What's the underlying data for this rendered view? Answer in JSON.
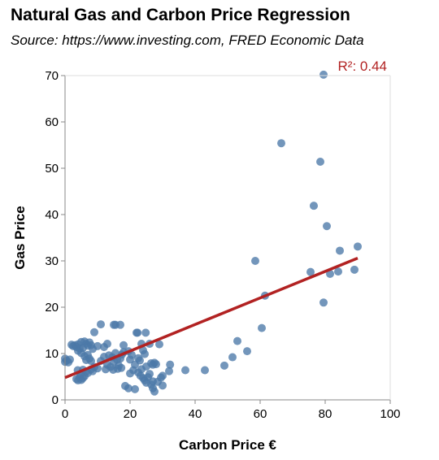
{
  "title": "Natural Gas and Carbon Price Regression",
  "subtitle": "Source: https://www.investing.com, FRED Economic Data",
  "chart_data": {
    "type": "scatter",
    "xlabel": "Carbon Price €",
    "ylabel": "Gas Price",
    "xlim": [
      0,
      100
    ],
    "ylim": [
      0,
      70
    ],
    "xticks": [
      "0",
      "20",
      "40",
      "60",
      "80",
      "100"
    ],
    "yticks": [
      "0",
      "10",
      "20",
      "30",
      "40",
      "50",
      "60",
      "70"
    ],
    "grid": false,
    "point_color": "#4c78a8",
    "line_color": "#b22222",
    "regression": {
      "x": [
        0,
        90
      ],
      "y": [
        4.8,
        30.6
      ]
    },
    "r2_label": "R²: 0.44",
    "points": [
      [
        0,
        8.9
      ],
      [
        0,
        8.2
      ],
      [
        0.5,
        8.5
      ],
      [
        1,
        8.1
      ],
      [
        1.5,
        8.7
      ],
      [
        2,
        11.9
      ],
      [
        2.5,
        11.6
      ],
      [
        3,
        11.8
      ],
      [
        3.5,
        11.4
      ],
      [
        4,
        12.0
      ],
      [
        4,
        10.6
      ],
      [
        4.5,
        11.1
      ],
      [
        5,
        12.5
      ],
      [
        5.5,
        11.2
      ],
      [
        6,
        12.6
      ],
      [
        6.5,
        12.1
      ],
      [
        7,
        11.7
      ],
      [
        7.5,
        12.4
      ],
      [
        8,
        11.8
      ],
      [
        8.5,
        11.0
      ],
      [
        3.5,
        4.5
      ],
      [
        4,
        4.2
      ],
      [
        4.5,
        4.9
      ],
      [
        5,
        4.3
      ],
      [
        5.5,
        4.7
      ],
      [
        6,
        5.1
      ],
      [
        4.8,
        5.6
      ],
      [
        5.5,
        6.5
      ],
      [
        6.5,
        6.1
      ],
      [
        3.9,
        6.4
      ],
      [
        5,
        10.1
      ],
      [
        6,
        9.4
      ],
      [
        7,
        9.7
      ],
      [
        6.5,
        8.6
      ],
      [
        7.5,
        8.9
      ],
      [
        8,
        6.6
      ],
      [
        8.5,
        6.2
      ],
      [
        9,
        7.1
      ],
      [
        7,
        5.8
      ],
      [
        8,
        8.4
      ],
      [
        9,
        14.6
      ],
      [
        10,
        11.6
      ],
      [
        11,
        16.3
      ],
      [
        12,
        11.4
      ],
      [
        13,
        12.1
      ],
      [
        12,
        9.3
      ],
      [
        11,
        8.4
      ],
      [
        10,
        6.8
      ],
      [
        12.5,
        6.6
      ],
      [
        13,
        7.6
      ],
      [
        14,
        7.1
      ],
      [
        13.5,
        9.6
      ],
      [
        15,
        8.2
      ],
      [
        15.5,
        10.1
      ],
      [
        14.5,
        9.2
      ],
      [
        16,
        8.7
      ],
      [
        16.5,
        7.4
      ],
      [
        17,
        8.9
      ],
      [
        17.5,
        9.8
      ],
      [
        18,
        10.3
      ],
      [
        15,
        16.2
      ],
      [
        15.5,
        16.2
      ],
      [
        17,
        16.2
      ],
      [
        14.8,
        6.5
      ],
      [
        16.2,
        6.7
      ],
      [
        17.3,
        6.9
      ],
      [
        18,
        11.8
      ],
      [
        18.5,
        3.0
      ],
      [
        19.5,
        10.5
      ],
      [
        20.5,
        9.7
      ],
      [
        20,
        8.7
      ],
      [
        21,
        6.4
      ],
      [
        21.5,
        7.6
      ],
      [
        20,
        5.7
      ],
      [
        19.5,
        2.5
      ],
      [
        21.5,
        2.3
      ],
      [
        22,
        14.5
      ],
      [
        22.3,
        14.5
      ],
      [
        24.8,
        14.5
      ],
      [
        22.5,
        9.0
      ],
      [
        23,
        8.5
      ],
      [
        23.5,
        12.1
      ],
      [
        24,
        10.7
      ],
      [
        24.5,
        9.9
      ],
      [
        25,
        7.2
      ],
      [
        23.5,
        6.6
      ],
      [
        22.5,
        5.9
      ],
      [
        23.2,
        5.2
      ],
      [
        24,
        4.7
      ],
      [
        24.5,
        4.2
      ],
      [
        25,
        3.7
      ],
      [
        25.5,
        4.9
      ],
      [
        26,
        5.6
      ],
      [
        26.5,
        3.3
      ],
      [
        27,
        2.5
      ],
      [
        27.5,
        1.8
      ],
      [
        27,
        4.0
      ],
      [
        26,
        12.1
      ],
      [
        26.5,
        7.9
      ],
      [
        27,
        7.6
      ],
      [
        27.5,
        8.0
      ],
      [
        28,
        7.7
      ],
      [
        28.5,
        3.9
      ],
      [
        29,
        12.0
      ],
      [
        29.5,
        4.8
      ],
      [
        30,
        3.1
      ],
      [
        30,
        5.2
      ],
      [
        32,
        6.2
      ],
      [
        32.3,
        7.6
      ],
      [
        37,
        6.4
      ],
      [
        43,
        6.4
      ],
      [
        49,
        7.4
      ],
      [
        51.5,
        9.2
      ],
      [
        53,
        12.7
      ],
      [
        56,
        10.5
      ],
      [
        58.5,
        30.0
      ],
      [
        60.5,
        15.5
      ],
      [
        61.5,
        22.5
      ],
      [
        66.5,
        55.4
      ],
      [
        75.5,
        27.6
      ],
      [
        76.5,
        41.9
      ],
      [
        78.5,
        51.4
      ],
      [
        79.5,
        21.0
      ],
      [
        80.5,
        37.5
      ],
      [
        81.5,
        27.2
      ],
      [
        84,
        27.7
      ],
      [
        84.5,
        32.2
      ],
      [
        89,
        28.1
      ],
      [
        90,
        33.1
      ],
      [
        79.5,
        70.2
      ]
    ]
  }
}
